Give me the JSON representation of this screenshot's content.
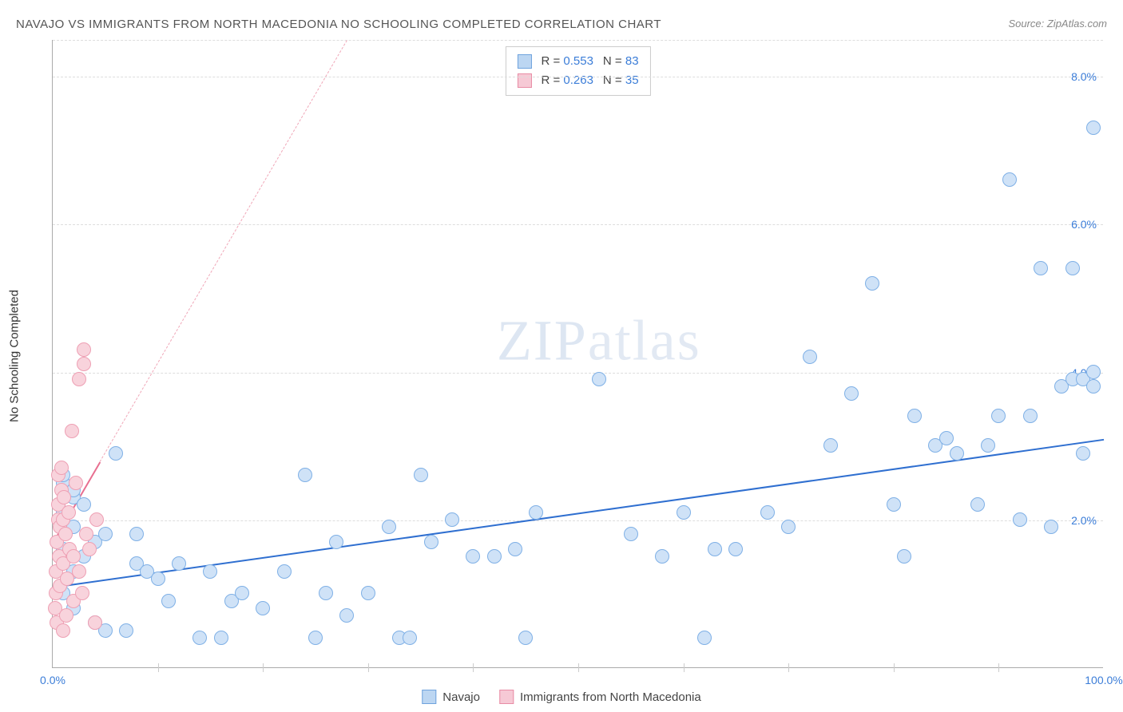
{
  "title": "NAVAJO VS IMMIGRANTS FROM NORTH MACEDONIA NO SCHOOLING COMPLETED CORRELATION CHART",
  "source": "Source: ZipAtlas.com",
  "ylabel": "No Schooling Completed",
  "watermark": {
    "part1": "ZIP",
    "part2": "atlas"
  },
  "chart": {
    "type": "scatter",
    "xlim": [
      0,
      100
    ],
    "ylim": [
      0,
      8.5
    ],
    "xticks": [
      {
        "v": 0,
        "label": "0.0%",
        "color": "#3b7dd8"
      },
      {
        "v": 10,
        "label": ""
      },
      {
        "v": 20,
        "label": ""
      },
      {
        "v": 30,
        "label": ""
      },
      {
        "v": 40,
        "label": ""
      },
      {
        "v": 50,
        "label": ""
      },
      {
        "v": 60,
        "label": ""
      },
      {
        "v": 70,
        "label": ""
      },
      {
        "v": 80,
        "label": ""
      },
      {
        "v": 90,
        "label": ""
      },
      {
        "v": 100,
        "label": "100.0%",
        "color": "#3b7dd8"
      }
    ],
    "yticks": [
      {
        "v": 2.0,
        "label": "2.0%",
        "color": "#3b7dd8"
      },
      {
        "v": 4.0,
        "label": "4.0%",
        "color": "#3b7dd8"
      },
      {
        "v": 6.0,
        "label": "6.0%",
        "color": "#3b7dd8"
      },
      {
        "v": 8.0,
        "label": "8.0%",
        "color": "#3b7dd8"
      }
    ],
    "grid_color": "#dddddd",
    "background_color": "#ffffff",
    "marker_radius": 9,
    "marker_stroke_width": 1.5
  },
  "series": [
    {
      "name": "Navajo",
      "fill": "#cfe2f7",
      "stroke": "#7fb0e6",
      "swatch_fill": "#bcd6f2",
      "swatch_stroke": "#6fa3dd",
      "R": "0.553",
      "N": "83",
      "trend": {
        "x1": 0,
        "y1": 1.1,
        "x2": 100,
        "y2": 3.1,
        "color": "#2f6fd0",
        "width": 2,
        "dashed": false
      },
      "points": [
        [
          1,
          1.0
        ],
        [
          1,
          1.6
        ],
        [
          1,
          2.1
        ],
        [
          1,
          2.5
        ],
        [
          1,
          2.6
        ],
        [
          2,
          0.8
        ],
        [
          2,
          1.3
        ],
        [
          2,
          1.9
        ],
        [
          2,
          2.3
        ],
        [
          2,
          2.4
        ],
        [
          3,
          1.5
        ],
        [
          3,
          2.2
        ],
        [
          4,
          0.6
        ],
        [
          4,
          1.7
        ],
        [
          5,
          0.5
        ],
        [
          5,
          1.8
        ],
        [
          6,
          2.9
        ],
        [
          7,
          0.5
        ],
        [
          8,
          1.4
        ],
        [
          8,
          1.8
        ],
        [
          9,
          1.3
        ],
        [
          10,
          1.2
        ],
        [
          11,
          0.9
        ],
        [
          12,
          1.4
        ],
        [
          14,
          0.4
        ],
        [
          15,
          1.3
        ],
        [
          16,
          0.4
        ],
        [
          17,
          0.9
        ],
        [
          18,
          1.0
        ],
        [
          20,
          0.8
        ],
        [
          22,
          1.3
        ],
        [
          24,
          2.6
        ],
        [
          25,
          0.4
        ],
        [
          26,
          1.0
        ],
        [
          27,
          1.7
        ],
        [
          28,
          0.7
        ],
        [
          30,
          1.0
        ],
        [
          32,
          1.9
        ],
        [
          33,
          0.4
        ],
        [
          34,
          0.4
        ],
        [
          35,
          2.6
        ],
        [
          36,
          1.7
        ],
        [
          38,
          2.0
        ],
        [
          40,
          1.5
        ],
        [
          42,
          1.5
        ],
        [
          44,
          1.6
        ],
        [
          45,
          0.4
        ],
        [
          46,
          2.1
        ],
        [
          52,
          3.9
        ],
        [
          55,
          1.8
        ],
        [
          58,
          1.5
        ],
        [
          60,
          2.1
        ],
        [
          62,
          0.4
        ],
        [
          63,
          1.6
        ],
        [
          65,
          1.6
        ],
        [
          68,
          2.1
        ],
        [
          70,
          1.9
        ],
        [
          72,
          4.2
        ],
        [
          74,
          3.0
        ],
        [
          76,
          3.7
        ],
        [
          78,
          5.2
        ],
        [
          80,
          2.2
        ],
        [
          81,
          1.5
        ],
        [
          82,
          3.4
        ],
        [
          84,
          3.0
        ],
        [
          85,
          3.1
        ],
        [
          86,
          2.9
        ],
        [
          88,
          2.2
        ],
        [
          89,
          3.0
        ],
        [
          90,
          3.4
        ],
        [
          91,
          6.6
        ],
        [
          92,
          2.0
        ],
        [
          93,
          3.4
        ],
        [
          94,
          5.4
        ],
        [
          95,
          1.9
        ],
        [
          96,
          3.8
        ],
        [
          97,
          3.9
        ],
        [
          97,
          5.4
        ],
        [
          98,
          2.9
        ],
        [
          98,
          3.9
        ],
        [
          99,
          7.3
        ],
        [
          99,
          4.0
        ],
        [
          99,
          3.8
        ]
      ]
    },
    {
      "name": "Immigrants from North Macedonia",
      "fill": "#f8d3dc",
      "stroke": "#eea0b4",
      "swatch_fill": "#f6c9d5",
      "swatch_stroke": "#e88ca5",
      "R": "0.263",
      "N": "35",
      "trend": {
        "x1": 0,
        "y1": 1.7,
        "x2": 4.5,
        "y2": 2.8,
        "color": "#e86f90",
        "width": 2,
        "dashed": false
      },
      "trend_ext": {
        "x1": 4.5,
        "y1": 2.8,
        "x2": 28,
        "y2": 8.5,
        "color": "#f0a7b8",
        "width": 1,
        "dashed": true
      },
      "points": [
        [
          0.2,
          0.8
        ],
        [
          0.3,
          1.0
        ],
        [
          0.3,
          1.3
        ],
        [
          0.4,
          0.6
        ],
        [
          0.4,
          1.7
        ],
        [
          0.5,
          2.0
        ],
        [
          0.5,
          2.2
        ],
        [
          0.5,
          2.6
        ],
        [
          0.6,
          1.5
        ],
        [
          0.7,
          1.1
        ],
        [
          0.7,
          1.9
        ],
        [
          0.8,
          2.4
        ],
        [
          0.8,
          2.7
        ],
        [
          1.0,
          0.5
        ],
        [
          1.0,
          1.4
        ],
        [
          1.0,
          2.0
        ],
        [
          1.1,
          2.3
        ],
        [
          1.2,
          1.8
        ],
        [
          1.3,
          0.7
        ],
        [
          1.4,
          1.2
        ],
        [
          1.5,
          2.1
        ],
        [
          1.6,
          1.6
        ],
        [
          1.8,
          3.2
        ],
        [
          2.0,
          0.9
        ],
        [
          2.0,
          1.5
        ],
        [
          2.2,
          2.5
        ],
        [
          2.5,
          1.3
        ],
        [
          2.5,
          3.9
        ],
        [
          2.8,
          1.0
        ],
        [
          3.0,
          4.3
        ],
        [
          3.0,
          4.1
        ],
        [
          3.2,
          1.8
        ],
        [
          3.5,
          1.6
        ],
        [
          4.0,
          0.6
        ],
        [
          4.2,
          2.0
        ]
      ]
    }
  ],
  "bottom_legend": [
    {
      "label": "Navajo"
    },
    {
      "label": "Immigrants from North Macedonia"
    }
  ]
}
